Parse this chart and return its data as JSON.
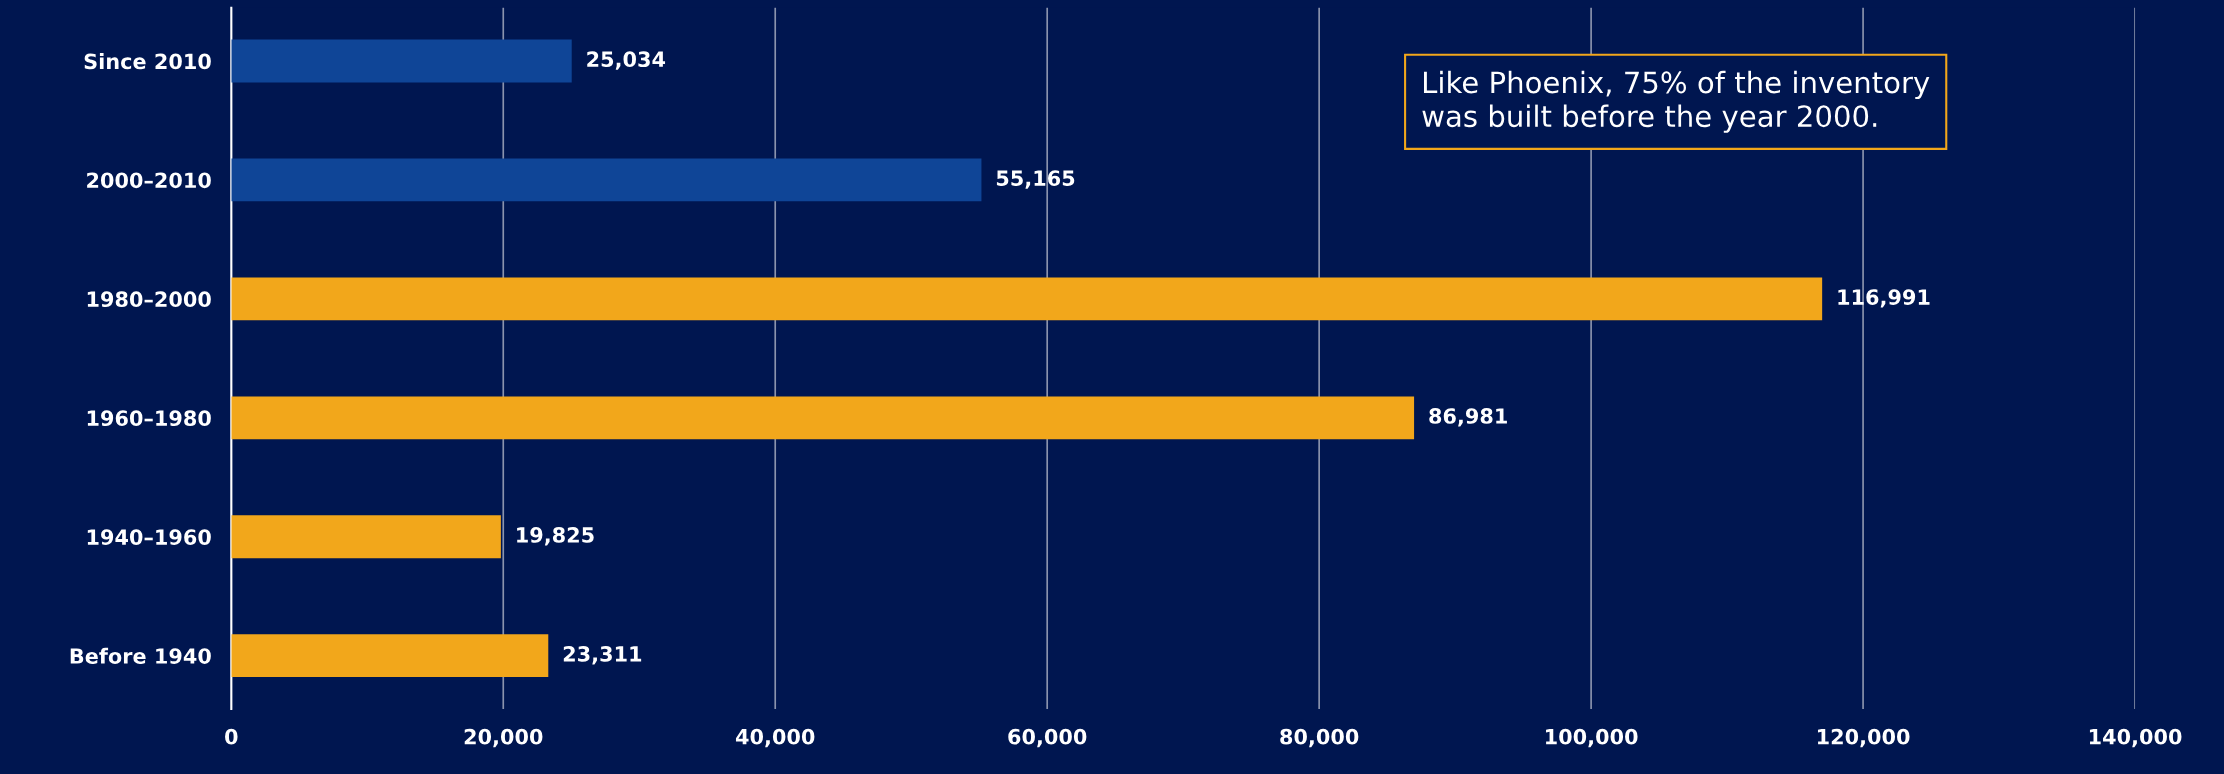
{
  "chart_data": {
    "type": "bar",
    "orientation": "horizontal",
    "categories": [
      "Since 2010",
      "2000–2010",
      "1980–2000",
      "1960–1980",
      "1940–1960",
      "Before 1940"
    ],
    "values": [
      25034,
      55165,
      116991,
      86981,
      19825,
      23311
    ],
    "colors": [
      "#0f4597",
      "#0f4597",
      "#f2a71b",
      "#f2a71b",
      "#f2a71b",
      "#f2a71b"
    ],
    "xlim": [
      0,
      140000
    ],
    "xticks": [
      0,
      {
        "value": 20000,
        "label": "20,000"
      },
      {
        "value": 40000,
        "label": "40,000"
      },
      {
        "value": 60000,
        "label": "60,000"
      },
      {
        "value": 80000,
        "label": "80,000"
      },
      {
        "value": 100000,
        "label": "100,000"
      },
      {
        "value": 120000,
        "label": "120,000"
      },
      {
        "value": 140000,
        "label": "140,000"
      }
    ],
    "value_labels": [
      "25,034",
      "55,165",
      "116,991",
      "86,981",
      "19,825",
      "23,311"
    ],
    "grid": "x",
    "legend": false,
    "annotations": [
      "Like Phoenix, 75% of the inventory\nwas built before the year 2000."
    ]
  }
}
